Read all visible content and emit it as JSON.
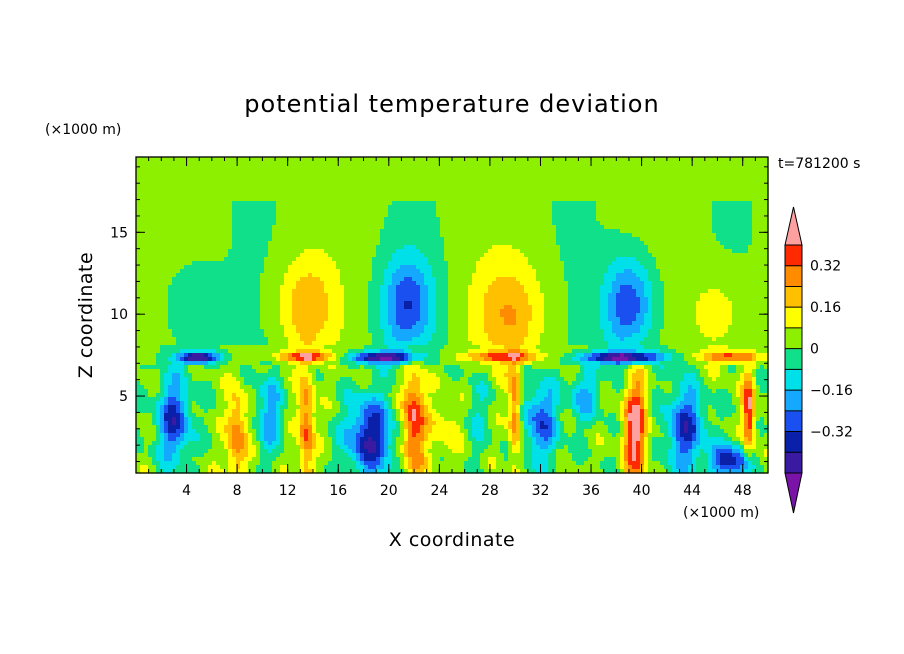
{
  "chart_data": {
    "type": "heatmap",
    "subtype": "filled-contour",
    "title": "potential temperature deviation",
    "xlabel": "X coordinate",
    "ylabel": "Z coordinate",
    "x_unit": "(×1000 m)",
    "y_unit": "(×1000 m)",
    "time_label": "t=781200 s",
    "xlim": [
      0,
      50
    ],
    "ylim": [
      0.3,
      19.6
    ],
    "x_ticks": [
      4,
      8,
      12,
      16,
      20,
      24,
      28,
      32,
      36,
      40,
      44,
      48
    ],
    "x_minor_step": 1,
    "y_ticks": [
      5,
      10,
      15
    ],
    "y_minor_step": 1,
    "colorbar": {
      "levels": [
        -0.48,
        -0.4,
        -0.32,
        -0.24,
        -0.16,
        -0.08,
        0,
        0.08,
        0.16,
        0.24,
        0.32,
        0.4
      ],
      "labels": [
        {
          "value": 0.32,
          "text": "0.32"
        },
        {
          "value": 0.16,
          "text": "0.16"
        },
        {
          "value": 0,
          "text": "0"
        },
        {
          "value": -0.16,
          "text": "−0.16"
        },
        {
          "value": -0.32,
          "text": "−0.32"
        }
      ],
      "colors": [
        "#7a14a8",
        "#3a1aa0",
        "#0a20a8",
        "#1a50f0",
        "#14a8ff",
        "#00e0e8",
        "#10e08a",
        "#8cf000",
        "#ffff00",
        "#ffc000",
        "#ff8c00",
        "#ff2a00",
        "#ffa0a0"
      ],
      "extend": "both"
    },
    "field_features": [
      {
        "kind": "upper-lobe",
        "x": 4.5,
        "z": 10.5,
        "sx": 2.2,
        "sz": 2.6,
        "amp": -0.12
      },
      {
        "kind": "upper-lobe",
        "x": 13.5,
        "z": 10.5,
        "sx": 2.2,
        "sz": 2.8,
        "amp": 0.2
      },
      {
        "kind": "upper-lobe",
        "x": 21.5,
        "z": 10.5,
        "sx": 2.0,
        "sz": 3.0,
        "amp": -0.32
      },
      {
        "kind": "upper-lobe",
        "x": 29.5,
        "z": 10.0,
        "sx": 2.8,
        "sz": 3.2,
        "amp": 0.2
      },
      {
        "kind": "upper-lobe",
        "x": 39.0,
        "z": 10.5,
        "sx": 2.0,
        "sz": 3.0,
        "amp": -0.34
      },
      {
        "kind": "upper-lobe",
        "x": 46.0,
        "z": 10.0,
        "sx": 2.2,
        "sz": 2.6,
        "amp": 0.12
      },
      {
        "kind": "plume",
        "x": 8.0,
        "z": 2.5,
        "sx": 0.8,
        "sz": 2.8,
        "amp": 0.3
      },
      {
        "kind": "plume",
        "x": 13.5,
        "z": 3.0,
        "sx": 0.6,
        "sz": 3.5,
        "amp": 0.32
      },
      {
        "kind": "plume",
        "x": 22.0,
        "z": 3.5,
        "sx": 0.9,
        "sz": 3.5,
        "amp": 0.4
      },
      {
        "kind": "plume",
        "x": 30.0,
        "z": 4.0,
        "sx": 0.5,
        "sz": 3.0,
        "amp": 0.32
      },
      {
        "kind": "plume",
        "x": 39.5,
        "z": 3.0,
        "sx": 0.9,
        "sz": 3.5,
        "amp": 0.44
      },
      {
        "kind": "plume",
        "x": 48.5,
        "z": 4.0,
        "sx": 0.5,
        "sz": 2.5,
        "amp": 0.4
      },
      {
        "kind": "pool",
        "x": 3.0,
        "z": 3.5,
        "sx": 1.3,
        "sz": 2.5,
        "amp": -0.36
      },
      {
        "kind": "pool",
        "x": 10.5,
        "z": 4.0,
        "sx": 1.0,
        "sz": 2.5,
        "amp": -0.22
      },
      {
        "kind": "pool",
        "x": 18.5,
        "z": 2.5,
        "sx": 1.8,
        "sz": 2.4,
        "amp": -0.42
      },
      {
        "kind": "pool",
        "x": 27.0,
        "z": 4.0,
        "sx": 1.0,
        "sz": 2.5,
        "amp": -0.1
      },
      {
        "kind": "pool",
        "x": 32.0,
        "z": 3.5,
        "sx": 1.4,
        "sz": 2.5,
        "amp": -0.3
      },
      {
        "kind": "pool",
        "x": 43.5,
        "z": 3.0,
        "sx": 1.5,
        "sz": 2.5,
        "amp": -0.36
      },
      {
        "kind": "pool",
        "x": 47.0,
        "z": 1.0,
        "sx": 1.5,
        "sz": 1.0,
        "amp": -0.4
      },
      {
        "kind": "pool",
        "x": 24.5,
        "z": 3.0,
        "sx": 1.2,
        "sz": 2.0,
        "amp": 0.12
      },
      {
        "kind": "pool",
        "x": 35.5,
        "z": 5.0,
        "sx": 1.2,
        "sz": 1.5,
        "amp": -0.2
      },
      {
        "kind": "layer-band",
        "x": 5.0,
        "z": 7.35,
        "sx": 1.6,
        "sz": 0.35,
        "amp": -0.5
      },
      {
        "kind": "layer-band",
        "x": 19.5,
        "z": 7.35,
        "sx": 2.6,
        "sz": 0.35,
        "amp": -0.5
      },
      {
        "kind": "layer-band",
        "x": 38.5,
        "z": 7.35,
        "sx": 3.2,
        "sz": 0.35,
        "amp": -0.5
      },
      {
        "kind": "layer-band",
        "x": 13.5,
        "z": 7.4,
        "sx": 2.2,
        "sz": 0.3,
        "amp": 0.35
      },
      {
        "kind": "layer-band",
        "x": 29.0,
        "z": 7.4,
        "sx": 3.0,
        "sz": 0.3,
        "amp": 0.3
      },
      {
        "kind": "layer-band",
        "x": 47.0,
        "z": 7.4,
        "sx": 2.5,
        "sz": 0.3,
        "amp": 0.3
      }
    ]
  }
}
